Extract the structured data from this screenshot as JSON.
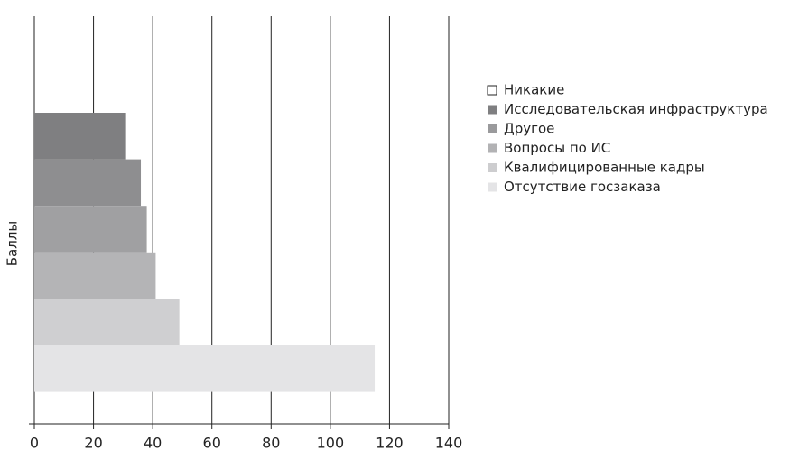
{
  "chart_data": {
    "type": "barh",
    "y_label": "Баллы",
    "series": [
      {
        "name": "Никакие",
        "color": "#7f7f81",
        "legend_color": "#ffffff",
        "values": [
          31
        ]
      },
      {
        "name": "Исследовательская инфраструктура",
        "color": "#8e8e90",
        "legend_color": "#7f7f81",
        "values": [
          36
        ]
      },
      {
        "name": "Другое",
        "color": "#a0a0a2",
        "legend_color": "#9a9a9c",
        "values": [
          38
        ]
      },
      {
        "name": "Вопросы по ИС",
        "color": "#b4b4b6",
        "legend_color": "#b2b2b4",
        "values": [
          41
        ]
      },
      {
        "name": "Квалифицированные кадры",
        "color": "#cfcfd1",
        "legend_color": "#cdcdcf",
        "values": [
          49
        ]
      },
      {
        "name": "Отсутствие госзаказа",
        "color": "#e4e4e6",
        "legend_color": "#e4e4e6",
        "values": [
          115
        ]
      }
    ],
    "xlim": [
      0,
      140
    ],
    "xticks": [
      0,
      20,
      40,
      60,
      80,
      100,
      120,
      140
    ],
    "grid": true,
    "legend": "right"
  }
}
